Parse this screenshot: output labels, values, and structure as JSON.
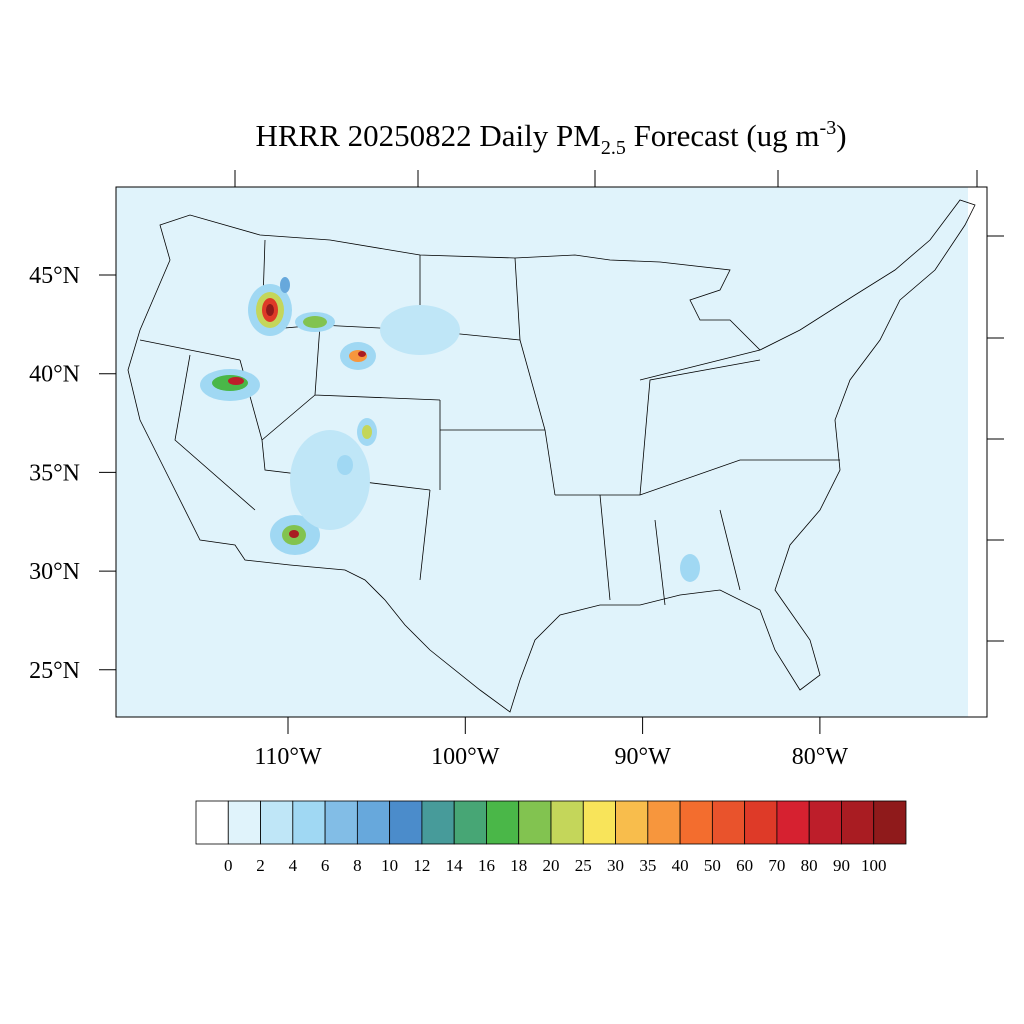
{
  "title": {
    "main": "HRRR 20250822 Daily PM",
    "sub": "2.5",
    "mid": " Forecast (ug m",
    "sup": "-3",
    "end": ")"
  },
  "map": {
    "lat_ticks": [
      {
        "value": 45,
        "label": "45°N"
      },
      {
        "value": 40,
        "label": "40°N"
      },
      {
        "value": 35,
        "label": "35°N"
      },
      {
        "value": 30,
        "label": "30°N"
      },
      {
        "value": 25,
        "label": "25°N"
      }
    ],
    "lon_ticks": [
      {
        "value": 110,
        "label": "110°W"
      },
      {
        "value": 100,
        "label": "100°W"
      },
      {
        "value": 90,
        "label": "90°W"
      },
      {
        "value": 80,
        "label": "80°W"
      }
    ]
  },
  "colorbar": {
    "colors": [
      "#ffffff",
      "#e0f3fb",
      "#bfe6f7",
      "#a0d8f3",
      "#82bde6",
      "#67a8dc",
      "#4b8ccb",
      "#479b9a",
      "#47a675",
      "#4ab748",
      "#82c350",
      "#c4d65a",
      "#f8e45a",
      "#f8bd4c",
      "#f7963d",
      "#f36d2e",
      "#e9532c",
      "#de3a28",
      "#d62130",
      "#bd1e2a",
      "#a91c22",
      "#8f1a1b"
    ],
    "labels": [
      0,
      2,
      4,
      6,
      8,
      10,
      12,
      14,
      16,
      18,
      20,
      25,
      30,
      35,
      40,
      50,
      60,
      70,
      80,
      90,
      100
    ]
  }
}
